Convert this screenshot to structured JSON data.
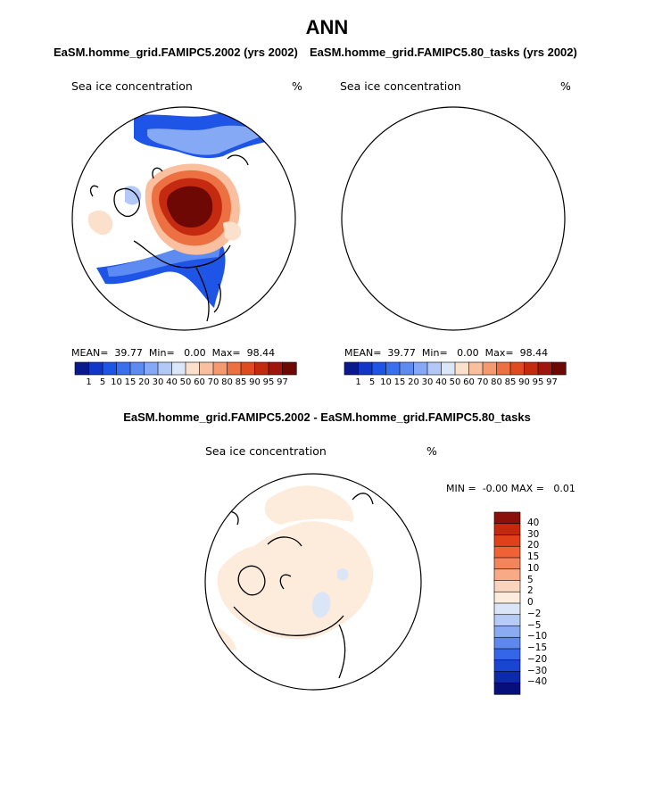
{
  "figure": {
    "title": "ANN",
    "variable": "Sea ice concentration",
    "unit": "%"
  },
  "panels": [
    {
      "title": "EaSM.homme_grid.FAMIPC5.2002 (yrs 2002)",
      "stats": {
        "mean_label": "MEAN=",
        "mean": "39.77",
        "min_label": "Min=",
        "min": "0.00",
        "max_label": "Max=",
        "max": "98.44"
      }
    },
    {
      "title": "EaSM.homme_grid.FAMIPC5.80_tasks (yrs 2002)",
      "stats": {
        "mean_label": "MEAN=",
        "mean": "39.77",
        "min_label": "Min=",
        "min": "0.00",
        "max_label": "Max=",
        "max": "98.44"
      }
    },
    {
      "title": "EaSM.homme_grid.FAMIPC5.2002 - EaSM.homme_grid.FAMIPC5.80_tasks",
      "stats": {
        "min_label": "MIN =",
        "min": "-0.00",
        "max_label": "MAX =",
        "max": "0.01"
      }
    }
  ],
  "chart_data": [
    {
      "type": "heatmap",
      "projection": "north-polar-stereographic",
      "title": "EaSM.homme_grid.FAMIPC5.2002 (yrs 2002)",
      "variable": "Sea ice concentration",
      "unit": "%",
      "mean": 39.77,
      "min": 0.0,
      "max": 98.44,
      "colorbar_levels": [
        1,
        5,
        10,
        15,
        20,
        30,
        40,
        50,
        60,
        70,
        80,
        85,
        90,
        95,
        97
      ]
    },
    {
      "type": "heatmap",
      "projection": "north-polar-stereographic",
      "title": "EaSM.homme_grid.FAMIPC5.80_tasks (yrs 2002)",
      "variable": "Sea ice concentration",
      "unit": "%",
      "mean": 39.77,
      "min": 0.0,
      "max": 98.44,
      "colorbar_levels": [
        1,
        5,
        10,
        15,
        20,
        30,
        40,
        50,
        60,
        70,
        80,
        85,
        90,
        95,
        97
      ]
    },
    {
      "type": "heatmap",
      "projection": "north-polar-stereographic",
      "title": "EaSM.homme_grid.FAMIPC5.2002 - EaSM.homme_grid.FAMIPC5.80_tasks",
      "variable": "Sea ice concentration",
      "unit": "%",
      "min": -0.0,
      "max": 0.01,
      "colorbar_levels": [
        40,
        30,
        20,
        15,
        10,
        5,
        2,
        0,
        -2,
        -5,
        -10,
        -15,
        -20,
        -30,
        -40
      ]
    }
  ],
  "colorbars": {
    "abs_labels": [
      "1",
      "5",
      "10",
      "15",
      "20",
      "30",
      "40",
      "50",
      "60",
      "70",
      "80",
      "85",
      "90",
      "95",
      "97"
    ],
    "abs_colors": [
      "#0a1a8c",
      "#1236c7",
      "#1f55e6",
      "#3a70ef",
      "#5d8bf2",
      "#86a9f5",
      "#b2c8f7",
      "#dce6f9",
      "#fbe0cc",
      "#f9bf9e",
      "#f49a71",
      "#ec7042",
      "#e14a21",
      "#c42a10",
      "#a0150c",
      "#6e0805"
    ],
    "diff_labels": [
      "40",
      "30",
      "20",
      "15",
      "10",
      "5",
      "2",
      "0",
      "−2",
      "−5",
      "−10",
      "−15",
      "−20",
      "−30",
      "−40"
    ],
    "diff_colors": [
      "#8b0f0a",
      "#c4290e",
      "#e0401a",
      "#ee6235",
      "#f4845c",
      "#f8a985",
      "#fbd4bd",
      "#fdebdc",
      "#dbe5f8",
      "#b6cbf5",
      "#8aaaf2",
      "#5f88ee",
      "#3565e8",
      "#1a44d2",
      "#0d2aaa",
      "#070f7c"
    ]
  }
}
